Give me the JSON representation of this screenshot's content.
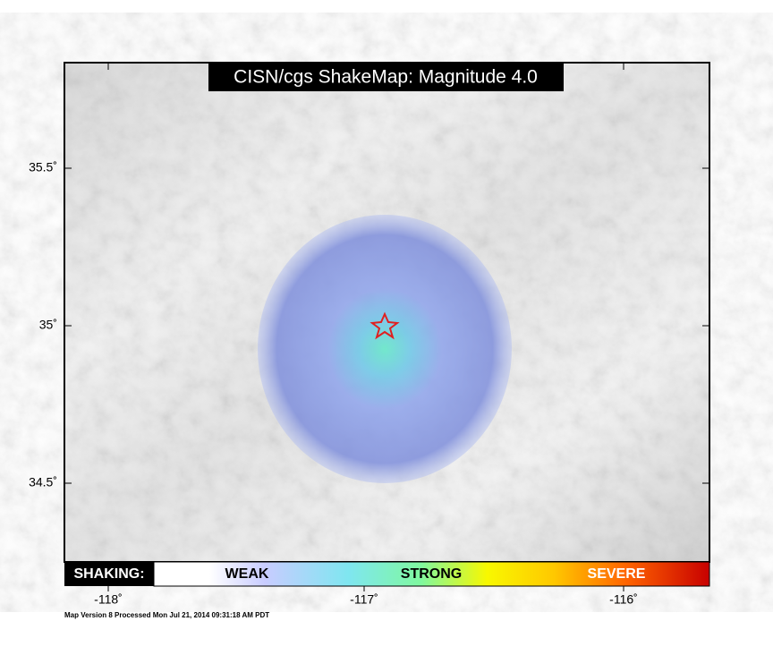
{
  "map": {
    "title": "CISN/cgs ShakeMap: Magnitude 4.0",
    "lat_labels": [
      "35.5˚",
      "35˚",
      "34.5˚"
    ],
    "lon_labels": [
      "-118˚",
      "-117˚",
      "-116˚"
    ],
    "legend": {
      "heading": "SHAKING:",
      "labels": [
        "WEAK",
        "STRONG",
        "SEVERE"
      ]
    },
    "footer": "Map Version 8 Processed Mon Jul 21, 2014 09:31:18 AM PDT"
  }
}
